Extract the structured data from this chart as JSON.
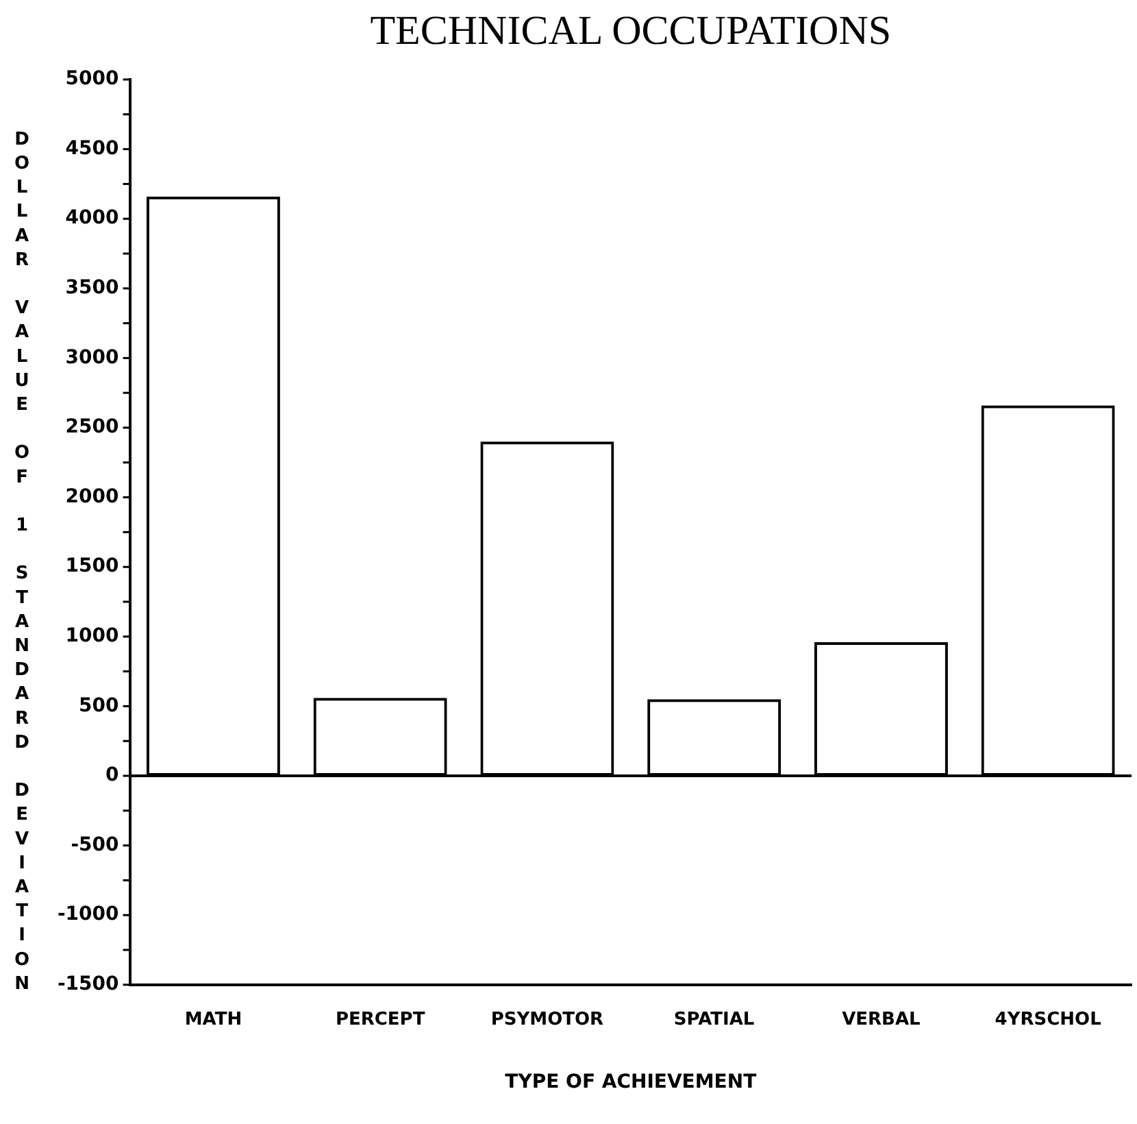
{
  "chart_data": {
    "type": "bar",
    "title": "TECHNICAL OCCUPATIONS",
    "xlabel": "TYPE OF ACHIEVEMENT",
    "ylabel": "DOLLAR VALUE OF 1 STANDARD DEVIATION",
    "categories": [
      "MATH",
      "PERCEPT",
      "PSYMOTOR",
      "SPATIAL",
      "VERBAL",
      "4YRSCHOL"
    ],
    "values": [
      4160,
      560,
      2400,
      550,
      960,
      2660
    ],
    "color": "#000000",
    "ylim": [
      -1500,
      5000
    ],
    "yticks": [
      -1500,
      {
        "value": -1250,
        "label": null
      },
      -1000,
      {
        "value": -750,
        "label": null
      },
      -500,
      {
        "value": -250,
        "label": null
      },
      0,
      {
        "value": 250,
        "label": null
      },
      500,
      {
        "value": 750,
        "label": null
      },
      1000,
      {
        "value": 1250,
        "label": null
      },
      1500,
      {
        "value": 1750,
        "label": null
      },
      2000,
      {
        "value": 2250,
        "label": null
      },
      2500,
      {
        "value": 2750,
        "label": null
      },
      3000,
      {
        "value": 3250,
        "label": null
      },
      3500,
      {
        "value": 3750,
        "label": null
      },
      4000,
      {
        "value": 4250,
        "label": null
      },
      4500,
      {
        "value": 4750,
        "label": null
      },
      5000
    ],
    "ref_lines": [
      {
        "axis": "y",
        "value": 0,
        "color": "#000000"
      }
    ],
    "grid": false,
    "legend": false
  }
}
